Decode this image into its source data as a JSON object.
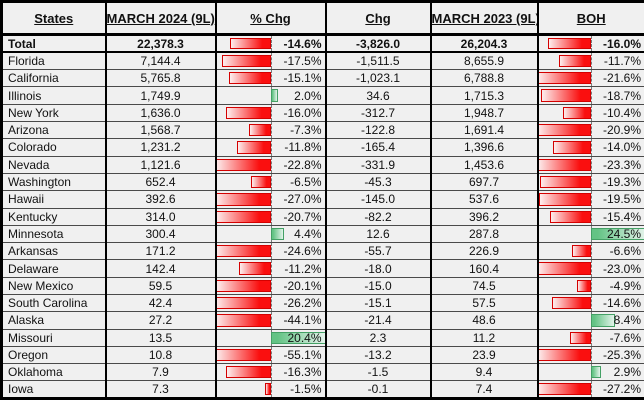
{
  "table": {
    "columns": [
      {
        "label": "States"
      },
      {
        "label": "MARCH 2024 (9L)"
      },
      {
        "label": "% Chg"
      },
      {
        "label": "Chg"
      },
      {
        "label": "MARCH 2023 (9L)"
      },
      {
        "label": "BOH"
      }
    ],
    "rows": [
      {
        "state": "Total",
        "v2024": "22,378.3",
        "pct": "-14.6%",
        "pct_val": -14.6,
        "chg": "-3,826.0",
        "v2023": "26,204.3",
        "boh": "-16.0%",
        "boh_val": -16.0,
        "total": true
      },
      {
        "state": "Florida",
        "v2024": "7,144.4",
        "pct": "-17.5%",
        "pct_val": -17.5,
        "chg": "-1,511.5",
        "v2023": "8,655.9",
        "boh": "-11.7%",
        "boh_val": -11.7
      },
      {
        "state": "California",
        "v2024": "5,765.8",
        "pct": "-15.1%",
        "pct_val": -15.1,
        "chg": "-1,023.1",
        "v2023": "6,788.8",
        "boh": "-21.6%",
        "boh_val": -21.6
      },
      {
        "state": "Illinois",
        "v2024": "1,749.9",
        "pct": "2.0%",
        "pct_val": 2.0,
        "chg": "34.6",
        "v2023": "1,715.3",
        "boh": "-18.7%",
        "boh_val": -18.7
      },
      {
        "state": "New York",
        "v2024": "1,636.0",
        "pct": "-16.0%",
        "pct_val": -16.0,
        "chg": "-312.7",
        "v2023": "1,948.7",
        "boh": "-10.4%",
        "boh_val": -10.4
      },
      {
        "state": "Arizona",
        "v2024": "1,568.7",
        "pct": "-7.3%",
        "pct_val": -7.3,
        "chg": "-122.8",
        "v2023": "1,691.4",
        "boh": "-20.9%",
        "boh_val": -20.9
      },
      {
        "state": "Colorado",
        "v2024": "1,231.2",
        "pct": "-11.8%",
        "pct_val": -11.8,
        "chg": "-165.4",
        "v2023": "1,396.6",
        "boh": "-14.0%",
        "boh_val": -14.0
      },
      {
        "state": "Nevada",
        "v2024": "1,121.6",
        "pct": "-22.8%",
        "pct_val": -22.8,
        "chg": "-331.9",
        "v2023": "1,453.6",
        "boh": "-23.3%",
        "boh_val": -23.3
      },
      {
        "state": "Washington",
        "v2024": "652.4",
        "pct": "-6.5%",
        "pct_val": -6.5,
        "chg": "-45.3",
        "v2023": "697.7",
        "boh": "-19.3%",
        "boh_val": -19.3
      },
      {
        "state": "Hawaii",
        "v2024": "392.6",
        "pct": "-27.0%",
        "pct_val": -27.0,
        "chg": "-145.0",
        "v2023": "537.6",
        "boh": "-19.5%",
        "boh_val": -19.5
      },
      {
        "state": "Kentucky",
        "v2024": "314.0",
        "pct": "-20.7%",
        "pct_val": -20.7,
        "chg": "-82.2",
        "v2023": "396.2",
        "boh": "-15.4%",
        "boh_val": -15.4
      },
      {
        "state": "Minnesota",
        "v2024": "300.4",
        "pct": "4.4%",
        "pct_val": 4.4,
        "chg": "12.6",
        "v2023": "287.8",
        "boh": "24.5%",
        "boh_val": 24.5
      },
      {
        "state": "Arkansas",
        "v2024": "171.2",
        "pct": "-24.6%",
        "pct_val": -24.6,
        "chg": "-55.7",
        "v2023": "226.9",
        "boh": "-6.6%",
        "boh_val": -6.6
      },
      {
        "state": "Delaware",
        "v2024": "142.4",
        "pct": "-11.2%",
        "pct_val": -11.2,
        "chg": "-18.0",
        "v2023": "160.4",
        "boh": "-23.0%",
        "boh_val": -23.0
      },
      {
        "state": "New Mexico",
        "v2024": "59.5",
        "pct": "-20.1%",
        "pct_val": -20.1,
        "chg": "-15.0",
        "v2023": "74.5",
        "boh": "-4.9%",
        "boh_val": -4.9
      },
      {
        "state": "South Carolina",
        "v2024": "42.4",
        "pct": "-26.2%",
        "pct_val": -26.2,
        "chg": "-15.1",
        "v2023": "57.5",
        "boh": "-14.6%",
        "boh_val": -14.6
      },
      {
        "state": "Alaska",
        "v2024": "27.2",
        "pct": "-44.1%",
        "pct_val": -44.1,
        "chg": "-21.4",
        "v2023": "48.6",
        "boh": "8.4%",
        "boh_val": 8.4
      },
      {
        "state": "Missouri",
        "v2024": "13.5",
        "pct": "20.4%",
        "pct_val": 20.4,
        "chg": "2.3",
        "v2023": "11.2",
        "boh": "-7.6%",
        "boh_val": -7.6
      },
      {
        "state": "Oregon",
        "v2024": "10.8",
        "pct": "-55.1%",
        "pct_val": -55.1,
        "chg": "-13.2",
        "v2023": "23.9",
        "boh": "-25.3%",
        "boh_val": -25.3
      },
      {
        "state": "Oklahoma",
        "v2024": "7.9",
        "pct": "-16.3%",
        "pct_val": -16.3,
        "chg": "-1.5",
        "v2023": "9.4",
        "boh": "2.9%",
        "boh_val": 2.9
      },
      {
        "state": "Iowa",
        "v2024": "7.3",
        "pct": "-1.5%",
        "pct_val": -1.5,
        "chg": "-0.1",
        "v2023": "7.4",
        "boh": "-27.2%",
        "boh_val": -27.2
      }
    ]
  },
  "databar": {
    "axis_position_pct": 50,
    "scale_max_abs_pct": 20.5,
    "negative_fill_base": "#fa0f0f",
    "negative_fill_tip": "#fdeeee",
    "negative_border": "#d40000",
    "positive_fill_base": "#63c384",
    "positive_fill_tip": "#e3f3ea",
    "positive_border": "#44a065",
    "axis_color": "#787878"
  },
  "colors": {
    "cell_background": "#f0f0f0",
    "grid_row_line": "#4a4a4a",
    "grid_col_line": "#000000",
    "text": "#111111"
  }
}
